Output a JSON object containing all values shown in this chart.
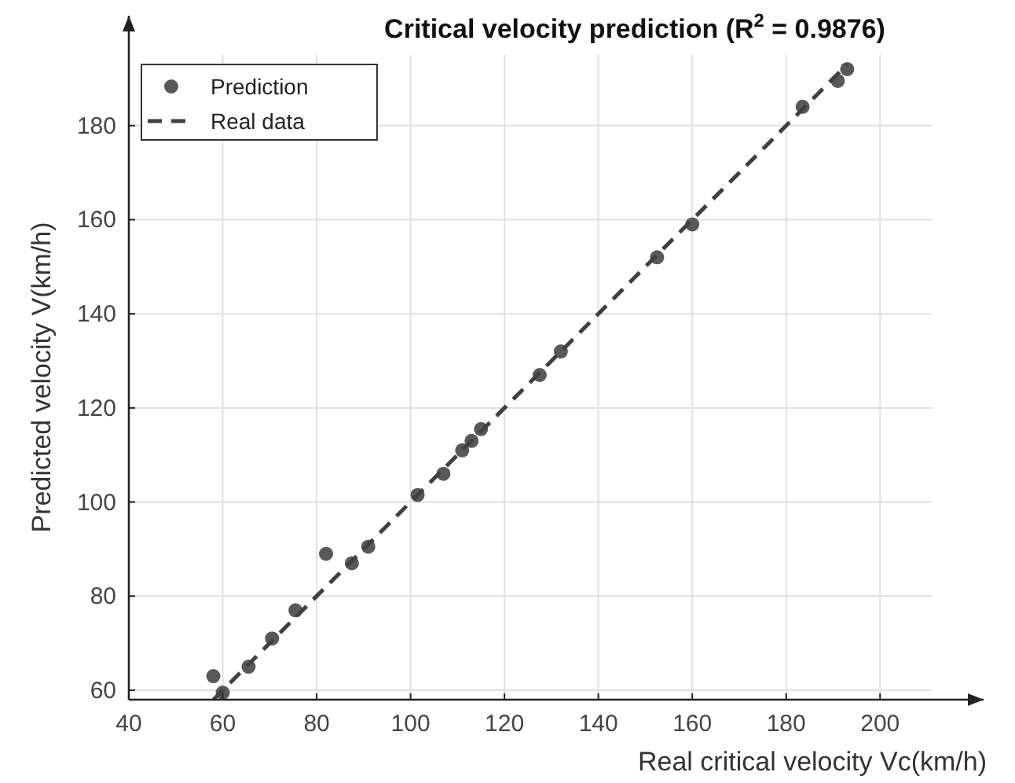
{
  "chart_data": {
    "type": "scatter",
    "title": "Critical velocity prediction (R$^{2}$ = 0.9876)",
    "xlabel": "Real critical velocity Vc(km/h)",
    "ylabel": "Predicted velocity V(km/h)",
    "xlim": [
      40,
      211
    ],
    "ylim": [
      58,
      195
    ],
    "xticks": [
      40,
      60,
      80,
      100,
      120,
      140,
      160,
      180,
      200
    ],
    "yticks": [
      60,
      80,
      100,
      120,
      140,
      160,
      180
    ],
    "grid": true,
    "legend": "top left",
    "series": [
      {
        "name": "Prediction",
        "marker": "circle",
        "color": "#595959",
        "x": [
          58,
          60,
          65.5,
          70.5,
          75.5,
          82,
          87.5,
          91,
          101.5,
          107,
          111,
          113,
          115,
          127.5,
          132,
          152.5,
          160,
          183.5,
          191,
          193
        ],
        "values": [
          63,
          59.5,
          65,
          71,
          77,
          89,
          87,
          90.5,
          101.5,
          106,
          111,
          113,
          115.5,
          127,
          132,
          152,
          159,
          184,
          189.5,
          192
        ]
      },
      {
        "name": "Real data",
        "type": "line",
        "line_style": "dashed",
        "marker": "none",
        "color": "#404040",
        "x": [
          58,
          193
        ],
        "values": [
          58,
          193
        ]
      }
    ]
  }
}
